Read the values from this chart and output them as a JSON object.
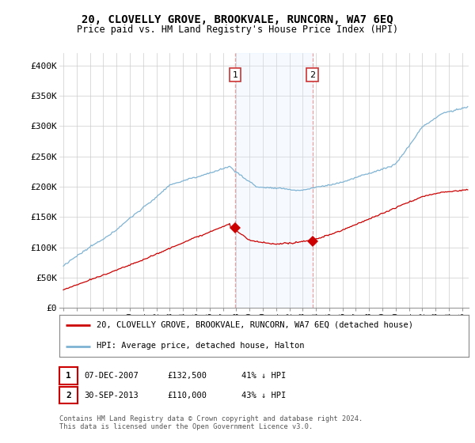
{
  "title": "20, CLOVELLY GROVE, BROOKVALE, RUNCORN, WA7 6EQ",
  "subtitle": "Price paid vs. HM Land Registry's House Price Index (HPI)",
  "ylabel_ticks": [
    "£0",
    "£50K",
    "£100K",
    "£150K",
    "£200K",
    "£250K",
    "£300K",
    "£350K",
    "£400K"
  ],
  "ytick_values": [
    0,
    50000,
    100000,
    150000,
    200000,
    250000,
    300000,
    350000,
    400000
  ],
  "ylim": [
    0,
    420000
  ],
  "sale1": {
    "date_num": 2007.92,
    "price": 132500,
    "label": "1"
  },
  "sale2": {
    "date_num": 2013.75,
    "price": 110000,
    "label": "2"
  },
  "legend_line1": "20, CLOVELLY GROVE, BROOKVALE, RUNCORN, WA7 6EQ (detached house)",
  "legend_line2": "HPI: Average price, detached house, Halton",
  "footnote": "Contains HM Land Registry data © Crown copyright and database right 2024.\nThis data is licensed under the Open Government Licence v3.0.",
  "line_color_red": "#cc0000",
  "line_color_blue": "#7fb3d3",
  "vline_color": "#e8a0a0",
  "span_color": "#ddeeff",
  "background_color": "#ffffff",
  "grid_color": "#cccccc"
}
